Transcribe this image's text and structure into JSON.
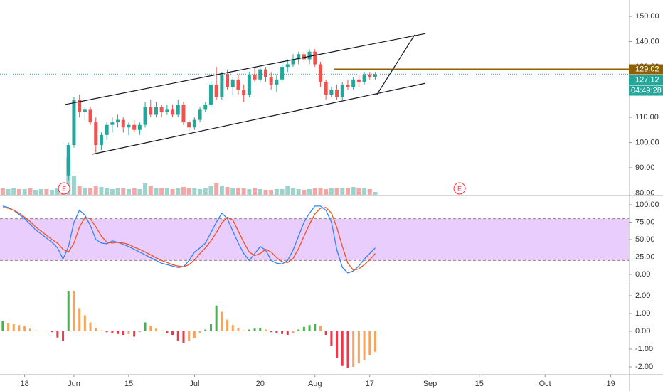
{
  "chart_data": [
    {
      "type": "candlestick",
      "xlim": [
        -0.5,
        114.3
      ],
      "ylim": [
        79.3,
        156.5
      ],
      "yticks": [
        {
          "value": 80,
          "label": "80.00"
        },
        {
          "value": 90,
          "label": "90.00"
        },
        {
          "value": 100,
          "label": "100.00"
        },
        {
          "value": 110,
          "label": "110.00"
        },
        {
          "value": 120,
          "label": "120.00"
        },
        {
          "value": 130,
          "label": "130.00"
        },
        {
          "value": 140,
          "label": "140.00"
        },
        {
          "value": 150,
          "label": "150.00"
        }
      ],
      "up_color": "#26a69a",
      "down_color": "#ef5350",
      "x": [
        12,
        13,
        14,
        15,
        16,
        17,
        18,
        19,
        20,
        21,
        22,
        23,
        24,
        25,
        26,
        27,
        28,
        29,
        30,
        31,
        32,
        33,
        34,
        35,
        36,
        37,
        38,
        39,
        40,
        41,
        42,
        43,
        44,
        45,
        46,
        47,
        48,
        49,
        50,
        51,
        52,
        53,
        54,
        55,
        56,
        57,
        58,
        59,
        60,
        61,
        62,
        63,
        64,
        65,
        66,
        67,
        68
      ],
      "open": [
        87,
        99,
        117,
        112,
        113,
        108,
        99,
        103,
        107,
        108,
        109,
        106,
        107,
        105,
        107,
        114,
        111,
        114,
        112,
        113,
        111,
        115,
        108,
        106,
        109,
        113,
        115,
        123,
        118,
        127,
        122,
        125,
        121,
        119,
        127,
        125,
        129,
        126,
        123,
        125,
        130,
        131,
        133,
        135,
        133,
        136,
        131,
        124,
        119,
        121,
        118,
        123,
        122,
        125,
        124,
        127,
        126
      ],
      "high": [
        100,
        118,
        119,
        114,
        114,
        110,
        104,
        108,
        110,
        111,
        110,
        108,
        109,
        108,
        116,
        117,
        116,
        115,
        115,
        115,
        117,
        116,
        109,
        110,
        114,
        116,
        124,
        130,
        128,
        129,
        126,
        127,
        123,
        128,
        130,
        130,
        130,
        128,
        127,
        131,
        133,
        135,
        136,
        136,
        137,
        137,
        132,
        125,
        122,
        123,
        124,
        125,
        126,
        127,
        128,
        128,
        128
      ],
      "low": [
        85,
        98,
        110,
        109,
        107,
        96,
        97,
        101,
        104,
        106,
        104,
        103,
        104,
        103,
        106,
        110,
        110,
        110,
        111,
        110,
        110,
        107,
        104,
        105,
        108,
        112,
        114,
        117,
        117,
        121,
        119,
        119,
        116,
        118,
        124,
        124,
        124,
        121,
        120,
        124,
        128,
        130,
        131,
        132,
        131,
        130,
        122,
        117,
        118,
        117,
        117,
        121,
        121,
        122,
        123,
        125,
        125
      ],
      "close": [
        99,
        117,
        112,
        113,
        108,
        99,
        103,
        107,
        108,
        109,
        106,
        107,
        105,
        107,
        114,
        111,
        114,
        112,
        113,
        111,
        115,
        108,
        106,
        109,
        113,
        115,
        123,
        118,
        127,
        122,
        125,
        121,
        119,
        127,
        125,
        129,
        126,
        123,
        125,
        130,
        131,
        133,
        135,
        133,
        136,
        131,
        124,
        119,
        121,
        118,
        123,
        122,
        125,
        124,
        127,
        126,
        127.12
      ],
      "volume": {
        "x": [
          0,
          1,
          2,
          3,
          4,
          5,
          6,
          7,
          8,
          9,
          10,
          11,
          12,
          13,
          14,
          15,
          16,
          17,
          18,
          19,
          20,
          21,
          22,
          23,
          24,
          25,
          26,
          27,
          28,
          29,
          30,
          31,
          32,
          33,
          34,
          35,
          36,
          37,
          38,
          39,
          40,
          41,
          42,
          43,
          44,
          45,
          46,
          47,
          48,
          49,
          50,
          51,
          52,
          53,
          54,
          55,
          56,
          57,
          58,
          59,
          60,
          61,
          62,
          63,
          64,
          65,
          66,
          67,
          68
        ],
        "values": [
          9,
          8,
          9,
          8,
          8,
          9,
          7,
          8,
          8,
          7,
          9,
          14,
          52,
          27,
          12,
          10,
          9,
          12,
          11,
          9,
          8,
          9,
          10,
          8,
          9,
          8,
          16,
          12,
          10,
          9,
          10,
          8,
          9,
          11,
          10,
          9,
          8,
          9,
          12,
          16,
          13,
          11,
          10,
          9,
          9,
          8,
          9,
          8,
          7,
          7,
          8,
          8,
          12,
          10,
          8,
          7,
          8,
          9,
          10,
          8,
          9,
          10,
          9,
          10,
          11,
          9,
          10,
          8,
          4
        ],
        "colors": [
          "#f5a5a3",
          "#9ad4cd",
          "#9ad4cd",
          "#f5a5a3",
          "#9ad4cd",
          "#f5a5a3",
          "#9ad4cd",
          "#9ad4cd",
          "#f5a5a3",
          "#9ad4cd",
          "#9ad4cd",
          "#f5a5a3",
          "#9ad4cd",
          "#9ad4cd",
          "#f5a5a3",
          "#9ad4cd",
          "#f5a5a3",
          "#f5a5a3",
          "#9ad4cd",
          "#9ad4cd",
          "#9ad4cd",
          "#9ad4cd",
          "#f5a5a3",
          "#9ad4cd",
          "#f5a5a3",
          "#9ad4cd",
          "#9ad4cd",
          "#f5a5a3",
          "#9ad4cd",
          "#f5a5a3",
          "#9ad4cd",
          "#f5a5a3",
          "#9ad4cd",
          "#f5a5a3",
          "#f5a5a3",
          "#9ad4cd",
          "#9ad4cd",
          "#9ad4cd",
          "#9ad4cd",
          "#f5a5a3",
          "#9ad4cd",
          "#f5a5a3",
          "#9ad4cd",
          "#f5a5a3",
          "#f5a5a3",
          "#9ad4cd",
          "#f5a5a3",
          "#9ad4cd",
          "#f5a5a3",
          "#f5a5a3",
          "#9ad4cd",
          "#9ad4cd",
          "#9ad4cd",
          "#9ad4cd",
          "#9ad4cd",
          "#f5a5a3",
          "#9ad4cd",
          "#f5a5a3",
          "#f5a5a3",
          "#f5a5a3",
          "#9ad4cd",
          "#f5a5a3",
          "#9ad4cd",
          "#f5a5a3",
          "#9ad4cd",
          "#f5a5a3",
          "#9ad4cd",
          "#f5a5a3",
          "#9ad4cd"
        ]
      },
      "trendlines": [
        {
          "points": [
            [
              11.45,
              115.1
            ],
            [
              77.16,
              143.2
            ]
          ],
          "color": "#131722"
        },
        {
          "points": [
            [
              16.38,
              95.4
            ],
            [
              77.16,
              123.5
            ]
          ],
          "color": "#131722"
        },
        {
          "points": [
            [
              68.3,
              119.0
            ],
            [
              75.2,
              142.7
            ]
          ],
          "color": "#131722"
        }
      ],
      "price_lines": [
        {
          "value": 129.02,
          "color": "#8d6000",
          "style": "solid",
          "x_start": 60.5
        },
        {
          "value": 127.12,
          "color": "#26a69a",
          "style": "dotted",
          "x_start": -0.5
        }
      ],
      "countdown": "04:49:28",
      "events": [
        {
          "x": 11.2,
          "label": "E"
        },
        {
          "x": 83.4,
          "label": "E"
        }
      ]
    },
    {
      "type": "line",
      "xlim": [
        -0.5,
        114.3
      ],
      "ylim": [
        -9.2,
        111.2
      ],
      "yticks": [
        {
          "value": 0,
          "label": "0.00"
        },
        {
          "value": 25,
          "label": "25.00"
        },
        {
          "value": 50,
          "label": "50.00"
        },
        {
          "value": 75,
          "label": "75.00"
        },
        {
          "value": 100,
          "label": "100.00"
        }
      ],
      "band": [
        20,
        80
      ],
      "band_color": "#e9cdfc",
      "x": [
        0,
        1,
        2,
        3,
        4,
        5,
        6,
        7,
        8,
        9,
        10,
        11,
        12,
        13,
        14,
        15,
        16,
        17,
        18,
        19,
        20,
        21,
        22,
        23,
        24,
        25,
        26,
        27,
        28,
        29,
        30,
        31,
        32,
        33,
        34,
        35,
        36,
        37,
        38,
        39,
        40,
        41,
        42,
        43,
        44,
        45,
        46,
        47,
        48,
        49,
        50,
        51,
        52,
        53,
        54,
        55,
        56,
        57,
        58,
        59,
        60,
        61,
        62,
        63,
        64,
        65,
        66,
        67,
        68
      ],
      "series": [
        {
          "color": "#2f86f6",
          "values": [
            98,
            96,
            92,
            86,
            80,
            72,
            64,
            58,
            52,
            46,
            38,
            22,
            40,
            75,
            92,
            85,
            70,
            50,
            45,
            44,
            48,
            46,
            43,
            40,
            36,
            32,
            28,
            24,
            20,
            16,
            14,
            12,
            10,
            11,
            20,
            32,
            38,
            45,
            60,
            75,
            88,
            80,
            62,
            45,
            30,
            20,
            30,
            40,
            35,
            20,
            16,
            15,
            20,
            35,
            55,
            75,
            88,
            98,
            98,
            92,
            75,
            35,
            10,
            2,
            5,
            12,
            22,
            30,
            38
          ]
        },
        {
          "color": "#f4511e",
          "values": [
            96,
            95,
            92,
            88,
            82,
            76,
            68,
            62,
            56,
            50,
            45,
            36,
            32,
            45,
            68,
            82,
            80,
            68,
            55,
            46,
            45,
            46,
            45,
            43,
            39,
            36,
            32,
            28,
            24,
            20,
            17,
            14,
            12,
            11,
            14,
            21,
            30,
            38,
            48,
            60,
            74,
            82,
            78,
            62,
            46,
            32,
            27,
            30,
            36,
            32,
            24,
            18,
            17,
            23,
            37,
            55,
            72,
            87,
            95,
            96,
            88,
            67,
            40,
            16,
            6,
            8,
            14,
            21,
            30
          ]
        }
      ]
    },
    {
      "type": "bar",
      "xlim": [
        -0.5,
        114.3
      ],
      "ylim": [
        -2.36,
        2.76
      ],
      "yticks": [
        {
          "value": -2,
          "label": "-2.00"
        },
        {
          "value": -1,
          "label": "-1.00"
        },
        {
          "value": 0,
          "label": "0.00"
        },
        {
          "value": 1,
          "label": "1.00"
        },
        {
          "value": 2,
          "label": "2.00"
        }
      ],
      "xticks": [
        {
          "value": 4,
          "label": "18"
        },
        {
          "value": 13,
          "label": "Jun"
        },
        {
          "value": 23,
          "label": "15"
        },
        {
          "value": 35,
          "label": "Jul"
        },
        {
          "value": 47,
          "label": "20"
        },
        {
          "value": 57,
          "label": "Aug"
        },
        {
          "value": 67,
          "label": "17"
        },
        {
          "value": 78,
          "label": "Sep"
        },
        {
          "value": 87,
          "label": "15"
        },
        {
          "value": 99,
          "label": "Oct"
        },
        {
          "value": 111,
          "label": "19"
        }
      ],
      "x": [
        0,
        1,
        2,
        3,
        4,
        5,
        6,
        7,
        8,
        9,
        10,
        11,
        12,
        13,
        14,
        15,
        16,
        17,
        18,
        19,
        20,
        21,
        22,
        23,
        24,
        25,
        26,
        27,
        28,
        29,
        30,
        31,
        32,
        33,
        34,
        35,
        36,
        37,
        38,
        39,
        40,
        41,
        42,
        43,
        44,
        45,
        46,
        47,
        48,
        49,
        50,
        51,
        52,
        53,
        54,
        55,
        56,
        57,
        58,
        59,
        60,
        61,
        62,
        63,
        64,
        65,
        66,
        67,
        68
      ],
      "values": [
        0.6,
        0.45,
        0.4,
        0.35,
        0.3,
        0.15,
        0.05,
        0.02,
        0.03,
        -0.05,
        -0.35,
        -0.55,
        2.25,
        2.25,
        1.3,
        0.9,
        0.5,
        0.2,
        0.05,
        -0.05,
        -0.1,
        -0.15,
        -0.2,
        -0.15,
        -0.3,
        -0.05,
        0.5,
        0.3,
        0.15,
        0.05,
        -0.1,
        -0.2,
        -0.55,
        -0.65,
        -0.55,
        -0.4,
        -0.1,
        0.1,
        0.4,
        1.45,
        1.1,
        0.65,
        0.35,
        0.2,
        0.05,
        0.1,
        0.15,
        0.2,
        0.1,
        -0.05,
        -0.1,
        -0.15,
        -0.2,
        -0.1,
        0.1,
        0.25,
        0.35,
        0.4,
        0.3,
        -0.2,
        -0.8,
        -1.5,
        -1.95,
        -2.05,
        -2.0,
        -1.8,
        -1.6,
        -1.35,
        -1.15
      ],
      "colors": [
        "#4caf50",
        "#f7a35c",
        "#f7a35c",
        "#f7a35c",
        "#f7a35c",
        "#f7a35c",
        "#f7a35c",
        "#f7a35c",
        "#4caf50",
        "#f23645",
        "#f23645",
        "#f23645",
        "#4caf50",
        "#f7a35c",
        "#f7a35c",
        "#f7a35c",
        "#f7a35c",
        "#f7a35c",
        "#f7a35c",
        "#f23645",
        "#f23645",
        "#f23645",
        "#f23645",
        "#f7a35c",
        "#f23645",
        "#f7a35c",
        "#4caf50",
        "#f7a35c",
        "#f7a35c",
        "#f7a35c",
        "#f23645",
        "#f23645",
        "#f23645",
        "#f23645",
        "#f7a35c",
        "#f7a35c",
        "#f7a35c",
        "#4caf50",
        "#4caf50",
        "#4caf50",
        "#f7a35c",
        "#f7a35c",
        "#f7a35c",
        "#f7a35c",
        "#f7a35c",
        "#4caf50",
        "#4caf50",
        "#4caf50",
        "#f7a35c",
        "#f23645",
        "#f23645",
        "#f23645",
        "#f23645",
        "#f7a35c",
        "#4caf50",
        "#4caf50",
        "#4caf50",
        "#4caf50",
        "#f7a35c",
        "#f23645",
        "#f23645",
        "#f23645",
        "#f23645",
        "#f23645",
        "#f7a35c",
        "#f7a35c",
        "#f7a35c",
        "#f7a35c",
        "#f7a35c"
      ]
    }
  ]
}
